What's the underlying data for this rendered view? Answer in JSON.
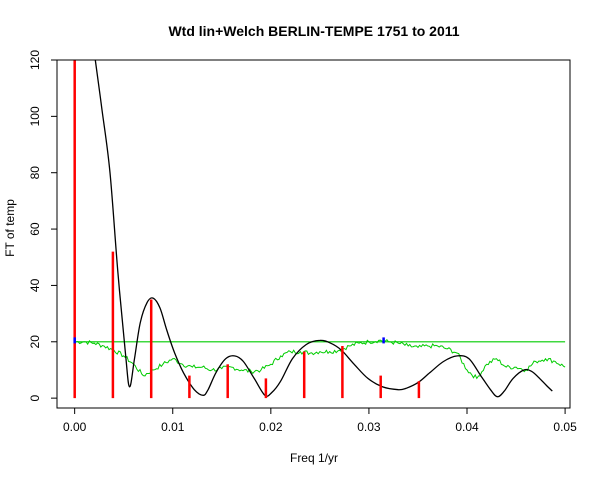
{
  "chart_data": {
    "type": "line",
    "title": "Wtd lin+Welch BERLIN-TEMPE 1751 to 2011",
    "xlabel": "Freq 1/yr",
    "ylabel": "FT of temp",
    "xlim": [
      -0.0018,
      0.0505
    ],
    "ylim": [
      -3.5,
      120
    ],
    "x_ticks": [
      0.0,
      0.01,
      0.02,
      0.03,
      0.04,
      0.05
    ],
    "x_tick_labels": [
      "0.00",
      "0.01",
      "0.02",
      "0.03",
      "0.04",
      "0.05"
    ],
    "y_ticks": [
      0,
      20,
      40,
      60,
      80,
      100,
      120
    ],
    "y_tick_labels": [
      "0",
      "20",
      "40",
      "60",
      "80",
      "100",
      "120"
    ],
    "grid": false,
    "colors": {
      "bars": "#ff0000",
      "black": "#000000",
      "green": "#00cc00",
      "markers": "#0000ff"
    },
    "series": [
      {
        "style": "spikes",
        "color": "#ff0000",
        "x": [
          0.0,
          0.0039,
          0.0078,
          0.0117,
          0.0156,
          0.0195,
          0.0234,
          0.0273,
          0.0312,
          0.0351
        ],
        "values": [
          120,
          52,
          35,
          8,
          12,
          7,
          16.5,
          18.5,
          8,
          6
        ]
      },
      {
        "style": "line",
        "color": "#000000",
        "x": [
          0.0021,
          0.0028,
          0.0036,
          0.0044,
          0.0052,
          0.0056,
          0.0061,
          0.0067,
          0.0074,
          0.008,
          0.0087,
          0.0094,
          0.0102,
          0.0111,
          0.0122,
          0.0131,
          0.0136,
          0.0144,
          0.0154,
          0.0163,
          0.0172,
          0.0183,
          0.0194,
          0.0201,
          0.021,
          0.0222,
          0.0236,
          0.025,
          0.0261,
          0.0272,
          0.0285,
          0.0299,
          0.0314,
          0.033,
          0.0338,
          0.035,
          0.0362,
          0.0376,
          0.039,
          0.0402,
          0.0414,
          0.0424,
          0.0431,
          0.0438,
          0.0447,
          0.0458,
          0.0466,
          0.0474,
          0.0481,
          0.0487
        ],
        "values": [
          120,
          102,
          80,
          45,
          15,
          4,
          14,
          27,
          34,
          35.5,
          32,
          24,
          16,
          9,
          3,
          1,
          3,
          9,
          14,
          15,
          13,
          7,
          1,
          2,
          6,
          14,
          19,
          20.5,
          19.5,
          17,
          12,
          7,
          4,
          3,
          3.5,
          5.5,
          9,
          13,
          15,
          14,
          8,
          3,
          0.5,
          2.5,
          7,
          10,
          9.5,
          7,
          4.5,
          2.5
        ]
      },
      {
        "style": "noisy-line",
        "color": "#00cc00",
        "x": [
          0.0,
          0.001,
          0.002,
          0.003,
          0.004,
          0.005,
          0.006,
          0.007,
          0.008,
          0.009,
          0.01,
          0.011,
          0.012,
          0.013,
          0.014,
          0.015,
          0.016,
          0.017,
          0.018,
          0.019,
          0.02,
          0.021,
          0.022,
          0.023,
          0.024,
          0.025,
          0.026,
          0.027,
          0.028,
          0.029,
          0.03,
          0.031,
          0.032,
          0.033,
          0.034,
          0.035,
          0.036,
          0.037,
          0.038,
          0.039,
          0.04,
          0.041,
          0.042,
          0.043,
          0.044,
          0.045,
          0.046,
          0.047,
          0.048,
          0.049,
          0.05
        ],
        "values": [
          20,
          20,
          19.5,
          18.5,
          17,
          15,
          12,
          8,
          10,
          12,
          14,
          12,
          11,
          11,
          10,
          10.5,
          11,
          10,
          9.5,
          10,
          12,
          15,
          16.5,
          16.5,
          16,
          16.5,
          16.5,
          17,
          18.5,
          19.5,
          20,
          20.5,
          20,
          19.5,
          18.5,
          18,
          18.5,
          18.5,
          17.5,
          16,
          10,
          7,
          12,
          14,
          11,
          11,
          10,
          13,
          14,
          13,
          11
        ]
      },
      {
        "style": "reference-line",
        "color": "#00cc00",
        "x": [
          0.0,
          0.05
        ],
        "values": [
          20,
          20
        ]
      },
      {
        "style": "markers",
        "color": "#0000ff",
        "x": [
          0.0,
          0.0315
        ],
        "values": [
          20.5,
          20.5
        ]
      }
    ]
  }
}
